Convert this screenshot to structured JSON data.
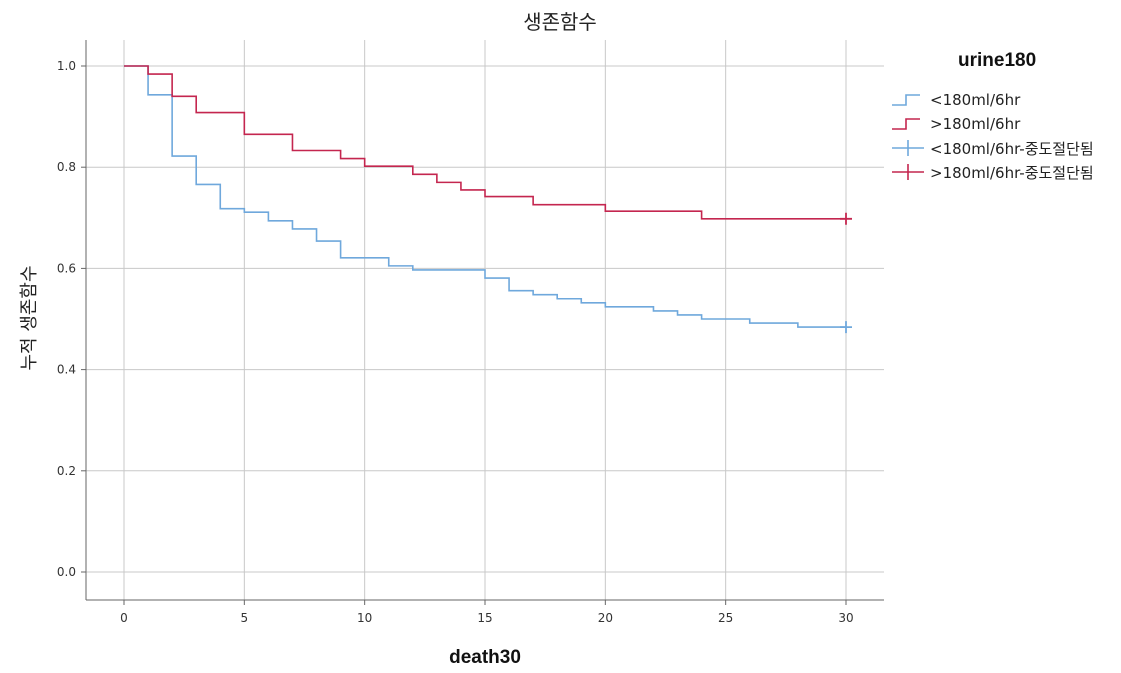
{
  "chart_data": {
    "type": "line",
    "subtype": "kaplan-meier step",
    "title": "생존함수",
    "xlabel": "death30",
    "ylabel": "누적 생존함수",
    "xlim": [
      0,
      30
    ],
    "ylim": [
      0.0,
      1.0
    ],
    "xticks": [
      0,
      5,
      10,
      15,
      20,
      25,
      30
    ],
    "yticks": [
      0.0,
      0.2,
      0.4,
      0.6,
      0.8,
      1.0
    ],
    "xtick_labels": [
      "0",
      "5",
      "10",
      "15",
      "20",
      "25",
      "30"
    ],
    "ytick_labels": [
      "0.0",
      "0.2",
      "0.4",
      "0.6",
      "0.8",
      "1.0"
    ],
    "grid": true,
    "legend_title": "urine180",
    "legend_position": "right",
    "legend": [
      {
        "label": "<180ml/6hr",
        "kind": "step",
        "color": "#6fa8dc"
      },
      {
        "label": ">180ml/6hr",
        "kind": "step",
        "color": "#c4264f"
      },
      {
        "label": "<180ml/6hr-중도절단됨",
        "kind": "censor",
        "color": "#6fa8dc"
      },
      {
        "label": ">180ml/6hr-중도절단됨",
        "kind": "censor",
        "color": "#c4264f"
      }
    ],
    "series": [
      {
        "name": "<180ml/6hr",
        "color": "#6fa8dc",
        "x": [
          0,
          1,
          2,
          3,
          4,
          5,
          6,
          7,
          8,
          9,
          11,
          12,
          15,
          16,
          17,
          18,
          19,
          20,
          22,
          23,
          24,
          26,
          28,
          30
        ],
        "y": [
          1.0,
          0.943,
          0.822,
          0.766,
          0.718,
          0.711,
          0.694,
          0.678,
          0.654,
          0.621,
          0.605,
          0.597,
          0.581,
          0.556,
          0.548,
          0.54,
          0.532,
          0.524,
          0.516,
          0.508,
          0.5,
          0.492,
          0.484,
          0.484
        ],
        "censored": [
          {
            "x": 30,
            "y": 0.484
          }
        ]
      },
      {
        "name": ">180ml/6hr",
        "color": "#c4264f",
        "x": [
          0,
          1,
          2,
          3,
          5,
          7,
          9,
          10,
          12,
          13,
          14,
          15,
          17,
          20,
          24,
          30
        ],
        "y": [
          1.0,
          0.984,
          0.94,
          0.908,
          0.865,
          0.833,
          0.817,
          0.802,
          0.786,
          0.77,
          0.755,
          0.742,
          0.726,
          0.713,
          0.698,
          0.698
        ],
        "censored": [
          {
            "x": 30,
            "y": 0.698
          }
        ]
      }
    ]
  }
}
